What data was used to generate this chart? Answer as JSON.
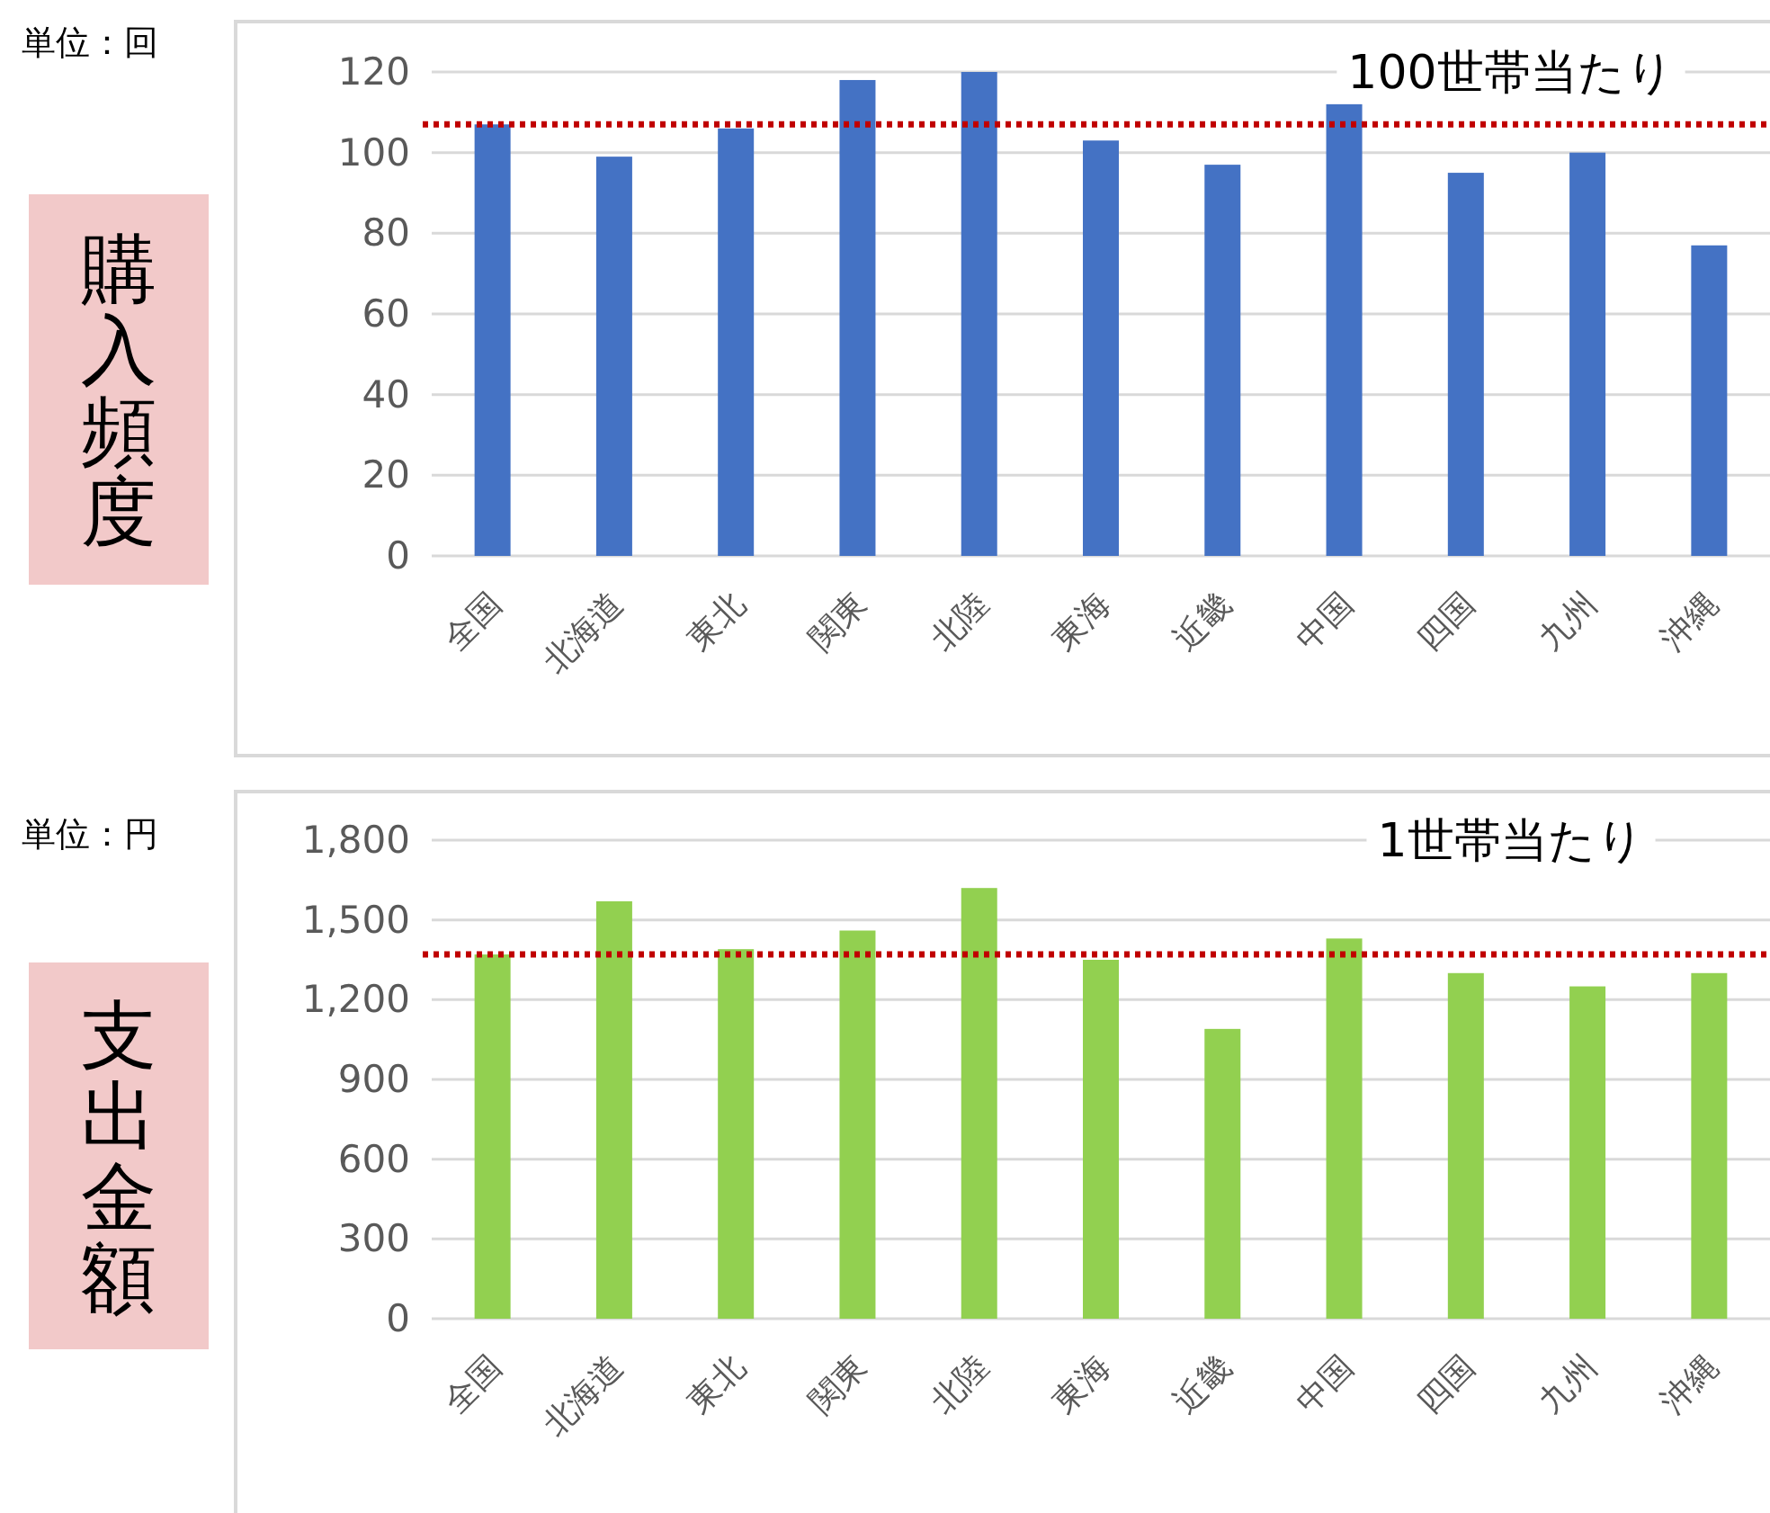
{
  "chart_data": [
    {
      "type": "bar",
      "title": "購入頻度",
      "subtitle": "100世帯当たり",
      "ylabel": "単位：回",
      "categories": [
        "全国",
        "北海道",
        "東北",
        "関東",
        "北陸",
        "東海",
        "近畿",
        "中国",
        "四国",
        "九州",
        "沖縄"
      ],
      "values": [
        107,
        99,
        106,
        118,
        120,
        103,
        97,
        112,
        95,
        100,
        77
      ],
      "color": "#4472c4",
      "ylim": [
        0,
        120
      ],
      "yticks": [
        0,
        20,
        40,
        60,
        80,
        100,
        120
      ],
      "grid": "y",
      "ref_lines": [
        {
          "axis": "y",
          "value": 107,
          "color": "#c00000",
          "line_style": "dotted"
        }
      ]
    },
    {
      "type": "bar",
      "title": "支出金額",
      "subtitle": "1世帯当たり",
      "ylabel": "単位：円",
      "categories": [
        "全国",
        "北海道",
        "東北",
        "関東",
        "北陸",
        "東海",
        "近畿",
        "中国",
        "四国",
        "九州",
        "沖縄"
      ],
      "values": [
        1370,
        1570,
        1390,
        1460,
        1620,
        1350,
        1090,
        1430,
        1300,
        1250,
        1300
      ],
      "color": "#92d050",
      "ylim": [
        0,
        1800
      ],
      "yticks": [
        {
          "value": 0,
          "label": "0"
        },
        {
          "value": 300,
          "label": "300"
        },
        {
          "value": 600,
          "label": "600"
        },
        {
          "value": 900,
          "label": "900"
        },
        {
          "value": 1200,
          "label": "1,200"
        },
        {
          "value": 1500,
          "label": "1,500"
        },
        {
          "value": 1800,
          "label": "1,800"
        }
      ],
      "grid": "y",
      "ref_lines": [
        {
          "axis": "y",
          "value": 1370,
          "color": "#c00000",
          "line_style": "dotted"
        }
      ]
    }
  ]
}
